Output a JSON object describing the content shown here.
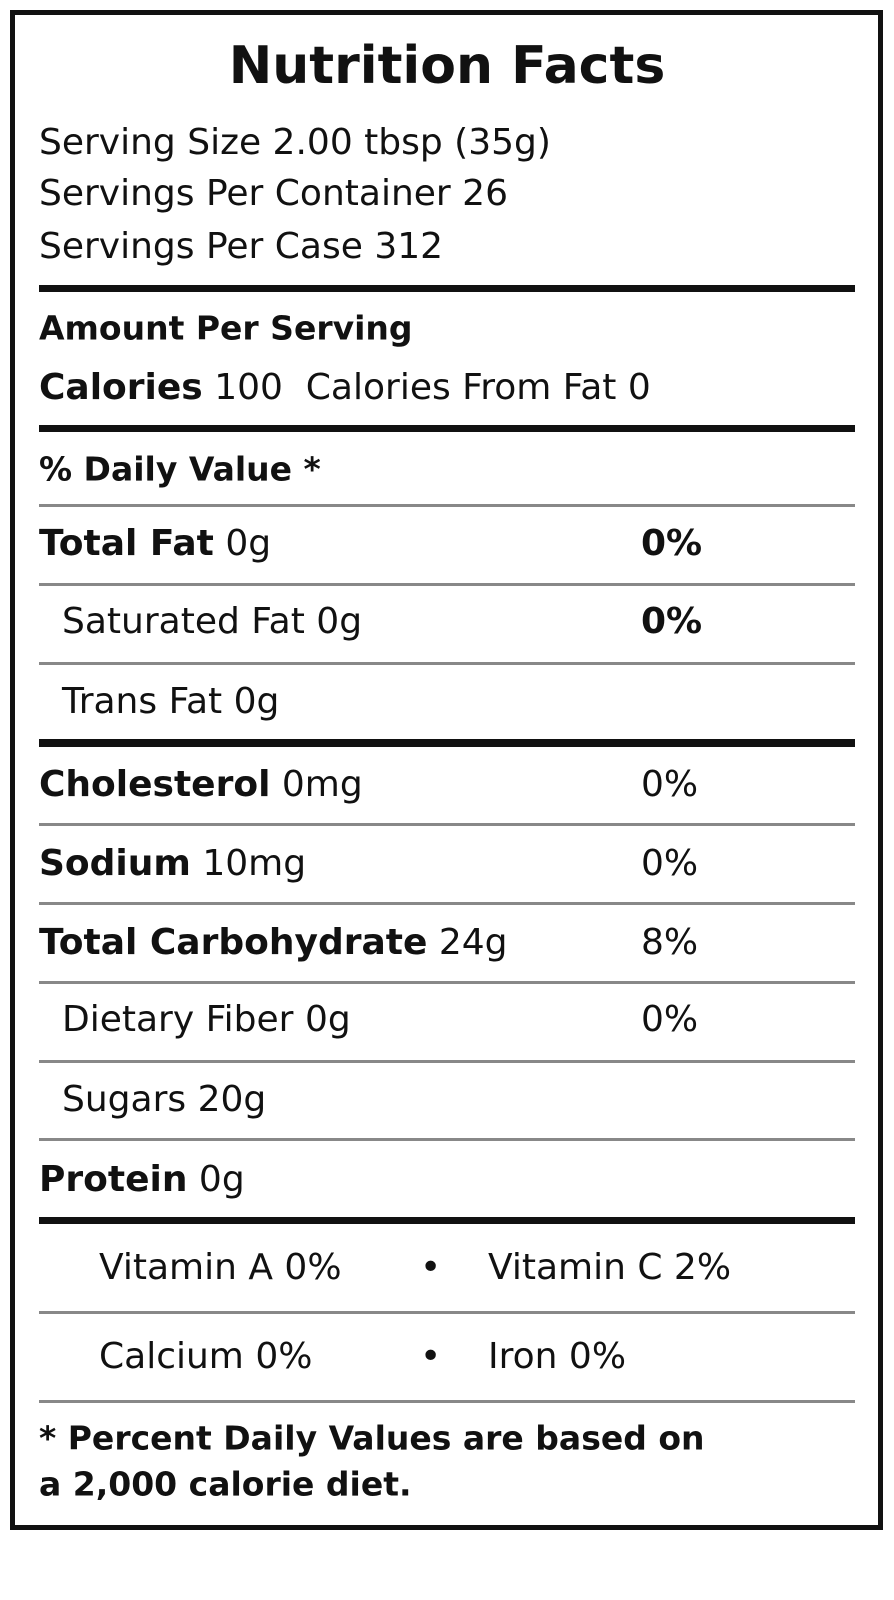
{
  "title": "Nutrition Facts",
  "serving": [
    "Serving Size 2.00 tbsp (35g)",
    "Servings Per Container 26",
    "Servings Per Case 312"
  ],
  "amount_header": "Amount Per Serving",
  "calories": {
    "label": "Calories",
    "value": "100",
    "from_fat": "Calories From Fat 0"
  },
  "dv_header": "% Daily Value *",
  "nutrients": [
    {
      "name": "Total Fat",
      "amount": "0g",
      "dv": "0%"
    },
    {
      "name": "Saturated Fat",
      "amount": "0g",
      "dv": "0%"
    },
    {
      "name": "Trans Fat",
      "amount": "0g"
    },
    {
      "name": "Cholesterol",
      "amount": "0mg",
      "dv": "0%"
    },
    {
      "name": "Sodium",
      "amount": "10mg",
      "dv": "0%"
    },
    {
      "name": "Total Carbohydrate",
      "amount": "24g",
      "dv": "8%"
    },
    {
      "name": "Dietary Fiber",
      "amount": "0g",
      "dv": "0%"
    },
    {
      "name": "Sugars",
      "amount": "20g"
    },
    {
      "name": "Protein",
      "amount": "0g"
    }
  ],
  "vitamins": [
    [
      "Vitamin A 0%",
      "Vitamin C 2%"
    ],
    [
      "Calcium 0%",
      "Iron 0%"
    ]
  ],
  "footnote": [
    "* Percent Daily Values are based on",
    "a 2,000 calorie diet."
  ]
}
